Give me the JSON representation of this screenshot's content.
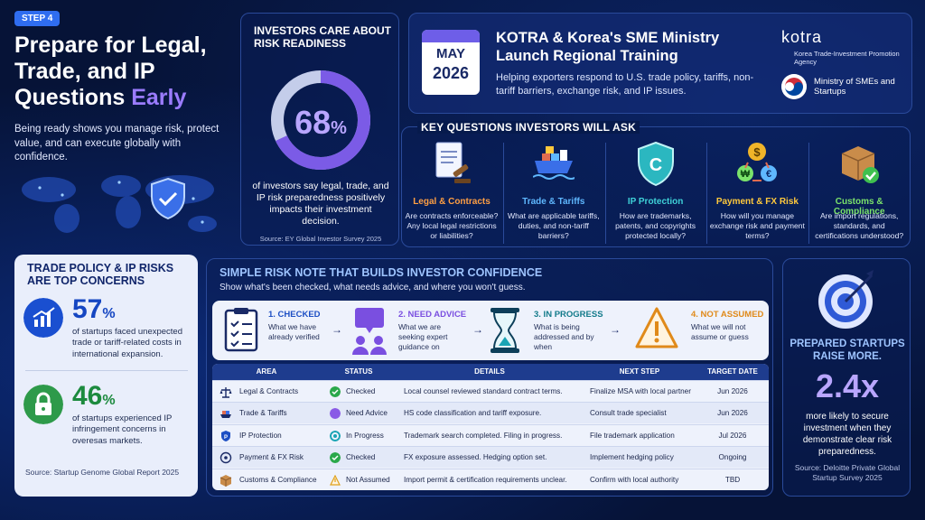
{
  "step": "STEP 4",
  "hero": {
    "title_main": "Prepare for Legal, Trade, and IP Questions",
    "title_accent": "Early",
    "subtitle": "Being ready shows you manage risk, protect value, and can execute globally with confidence."
  },
  "survey": {
    "title": "INVESTORS CARE ABOUT RISK READINESS",
    "percent": "68",
    "percent_sign": "%",
    "percent_value": 68,
    "desc": "of investors say legal, trade, and IP risk preparedness positively impacts their investment decision.",
    "source": "Source: EY Global Investor Survey 2025"
  },
  "news": {
    "month": "MAY",
    "year": "2026",
    "title": "KOTRA & Korea's SME Ministry Launch Regional Training",
    "sub": "Helping exporters respond to U.S. trade policy, tariffs, non-tariff barriers, exchange risk, and IP issues.",
    "kotra": "kotra",
    "kotra_sub": "Korea Trade-Investment Promotion Agency",
    "ministry": "Ministry of SMEs and Startups"
  },
  "key_questions": {
    "title": "KEY QUESTIONS INVESTORS WILL ASK",
    "items": [
      {
        "title": "Legal & Contracts",
        "q": "Are contracts enforceable? Any local legal restrictions or liabilities?",
        "color": "#ff9f43",
        "icon": "contract-gavel-icon"
      },
      {
        "title": "Trade & Tariffs",
        "q": "What are applicable tariffs, duties, and non-tariff barriers?",
        "color": "#5fb8ff",
        "icon": "cargo-ship-icon"
      },
      {
        "title": "IP Protection",
        "q": "How are trademarks, patents, and copyrights protected locally?",
        "color": "#3fd2d8",
        "icon": "shield-c-icon"
      },
      {
        "title": "Payment & FX Risk",
        "q": "How will you manage exchange risk and payment terms?",
        "color": "#ffc93c",
        "icon": "currency-exchange-icon"
      },
      {
        "title": "Customs & Compliance",
        "q": "Are import regulations, standards, and certifications understood?",
        "color": "#7be36b",
        "icon": "package-check-icon"
      }
    ]
  },
  "trade_risks": {
    "title": "TRADE POLICY & IP RISKS ARE TOP CONCERNS",
    "stat1": {
      "num": "57",
      "sign": "%",
      "text": "of startups faced unexpected trade or tariff-related costs in international expansion."
    },
    "stat2": {
      "num": "46",
      "sign": "%",
      "text": "of startups experienced IP infringement concerns in overesas markets."
    },
    "source": "Source: Startup Genome Global Report 2025"
  },
  "risk_note": {
    "title": "SIMPLE RISK NOTE THAT BUILDS INVESTOR CONFIDENCE",
    "sub": "Show what's been checked, what needs advice, and where you won't guess.",
    "flow": [
      {
        "label": "1. CHECKED",
        "desc": "What we have already verified",
        "color": "#1d4fc4"
      },
      {
        "label": "2. NEED ADVICE",
        "desc": "What we are seeking expert guidance on",
        "color": "#7a4fe0"
      },
      {
        "label": "3. IN PROGRESS",
        "desc": "What is being addressed and by when",
        "color": "#127a8a"
      },
      {
        "label": "4. NOT ASSUMED",
        "desc": "What we will not assume or guess",
        "color": "#e08a1a"
      }
    ],
    "arrow": "→",
    "headers": [
      "AREA",
      "STATUS",
      "DETAILS",
      "NEXT STEP",
      "TARGET DATE"
    ],
    "rows": [
      {
        "area": "Legal & Contracts",
        "status": "Checked",
        "details": "Local counsel reviewed standard contract terms.",
        "next": "Finalize MSA with local partner",
        "date": "Jun 2026",
        "status_color": "#2aa84a",
        "icon": "scales-icon"
      },
      {
        "area": "Trade & Tariffs",
        "status": "Need Advice",
        "details": "HS code classification and tariff exposure.",
        "next": "Consult trade specialist",
        "date": "Jun 2026",
        "status_color": "#8a5be6",
        "icon": "ship-icon"
      },
      {
        "area": "IP Protection",
        "status": "In Progress",
        "details": "Trademark search completed. Filing in progress.",
        "next": "File trademark application",
        "date": "Jul 2026",
        "status_color": "#1aa4b4",
        "icon": "shield-icon"
      },
      {
        "area": "Payment & FX Risk",
        "status": "Checked",
        "details": "FX exposure assessed. Hedging option set.",
        "next": "Implement hedging policy",
        "date": "Ongoing",
        "status_color": "#2aa84a",
        "icon": "exchange-icon"
      },
      {
        "area": "Customs & Compliance",
        "status": "Not Assumed",
        "details": "Import permit & certification requirements unclear.",
        "next": "Confirm with local authority",
        "date": "TBD",
        "status_color": "#e0a11a",
        "icon": "box-icon"
      }
    ]
  },
  "prepared": {
    "title": "PREPARED STARTUPS RAISE MORE.",
    "num": "2.4x",
    "desc": "more likely to secure investment when they demonstrate clear risk preparedness.",
    "source": "Source: Deloitte Private Global Startup Survey 2025"
  }
}
